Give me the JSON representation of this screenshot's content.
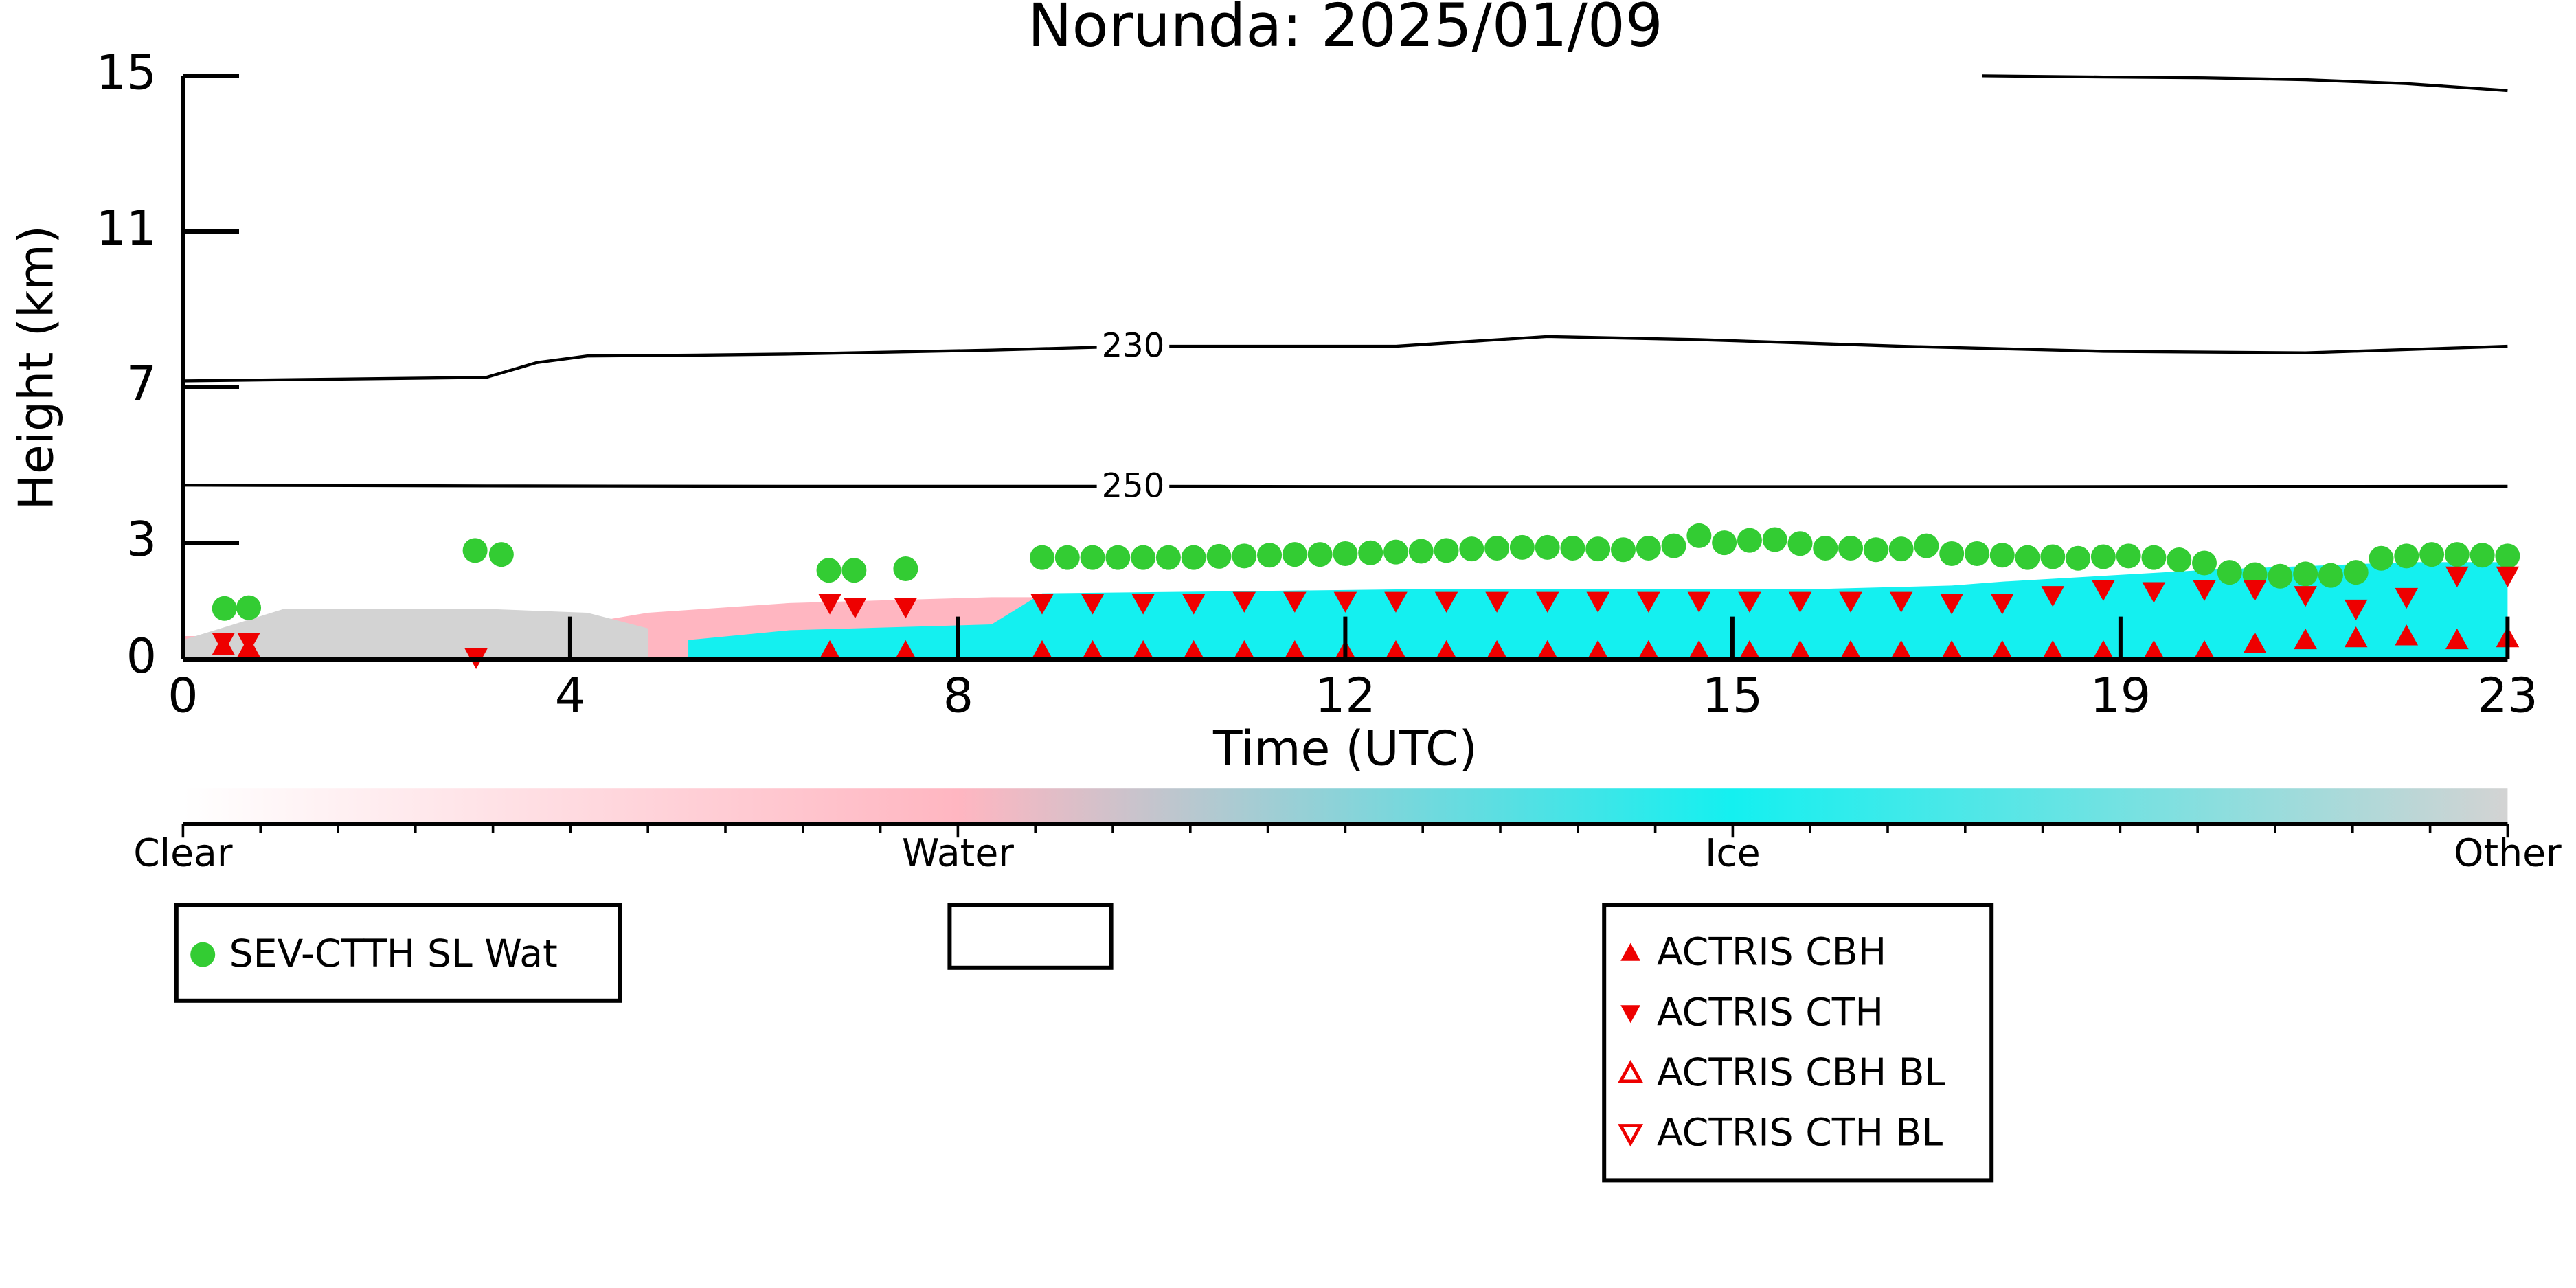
{
  "chart_data": {
    "type": "scatter",
    "title": "Norunda: 2025/01/09",
    "x_label": "Time (UTC)",
    "y_label": "Height (km)",
    "xlim": [
      0,
      23
    ],
    "ylim": [
      0,
      15
    ],
    "xticks": [
      0,
      {
        "value": 3.83,
        "label": "4"
      },
      {
        "value": 7.67,
        "label": "8"
      },
      {
        "value": 11.5,
        "label": "12"
      },
      {
        "value": 15.33,
        "label": "15"
      },
      {
        "value": 19.17,
        "label": "19"
      },
      23
    ],
    "yticks": [
      0,
      3,
      7,
      11,
      15
    ],
    "cloud_phase": [
      {
        "color": "#ffb6c1",
        "x": [
          0,
          0.9,
          1,
          3.9,
          4.6,
          6,
          8,
          8.5
        ],
        "top": [
          0.6,
          0.6,
          0.2,
          0.9,
          1.2,
          1.45,
          1.6,
          1.6
        ]
      },
      {
        "color": "#d3d3d3",
        "x": [
          0,
          1,
          2,
          3,
          4,
          4.6
        ],
        "top": [
          0.5,
          1.3,
          1.3,
          1.3,
          1.2,
          0.8
        ]
      },
      {
        "color": "#14f0f0",
        "x": [
          5,
          6,
          8,
          8.5,
          12,
          16,
          17.5,
          18,
          20,
          22,
          23
        ],
        "top": [
          0.5,
          0.75,
          0.9,
          1.7,
          1.8,
          1.8,
          1.9,
          2.0,
          2.3,
          2.5,
          2.5
        ]
      }
    ],
    "contours": [
      {
        "label": "230",
        "x": [
          0,
          3,
          3.5,
          4,
          5,
          6,
          8,
          9.4,
          12,
          13.5,
          15,
          17,
          19,
          21,
          23
        ],
        "values": [
          7.16,
          7.25,
          7.63,
          7.8,
          7.82,
          7.85,
          7.95,
          8.05,
          8.05,
          8.3,
          8.22,
          8.05,
          7.92,
          7.88,
          8.05
        ]
      },
      {
        "label": "250",
        "x": [
          0,
          3,
          6,
          9.4,
          13,
          18,
          23
        ],
        "values": [
          4.48,
          4.46,
          4.45,
          4.45,
          4.44,
          4.44,
          4.45
        ]
      }
    ],
    "top_line": {
      "x": [
        17.8,
        19,
        20,
        21,
        22,
        23
      ],
      "values": [
        15.0,
        14.97,
        14.95,
        14.9,
        14.8,
        14.62
      ]
    },
    "series": [
      {
        "name": "SEV-CTTH SL Wat",
        "color": "#33cc33",
        "marker": "o",
        "x": [
          0.41,
          0.65,
          2.89,
          3.15,
          6.39,
          6.64,
          7.15,
          8.5,
          8.75,
          9,
          9.25,
          9.5,
          9.75,
          10,
          10.25,
          10.5,
          10.75,
          11,
          11.25,
          11.5,
          11.75,
          12,
          12.25,
          12.5,
          12.75,
          13,
          13.25,
          13.5,
          13.75,
          14,
          14.25,
          14.5,
          14.75,
          15,
          15.25,
          15.5,
          15.75,
          16,
          16.25,
          16.5,
          16.75,
          17,
          17.25,
          17.5,
          17.75,
          18,
          18.25,
          18.5,
          18.75,
          19,
          19.25,
          19.5,
          19.75,
          20,
          20.25,
          20.5,
          20.75,
          21,
          21.25,
          21.5,
          21.75,
          22,
          22.25,
          22.5,
          22.75,
          23
        ],
        "values": [
          1.31,
          1.33,
          2.8,
          2.7,
          2.29,
          2.29,
          2.33,
          2.62,
          2.62,
          2.62,
          2.62,
          2.62,
          2.62,
          2.62,
          2.65,
          2.66,
          2.68,
          2.7,
          2.7,
          2.72,
          2.74,
          2.76,
          2.78,
          2.8,
          2.84,
          2.86,
          2.88,
          2.88,
          2.86,
          2.84,
          2.82,
          2.86,
          2.92,
          3.18,
          3.0,
          3.06,
          3.08,
          2.98,
          2.86,
          2.86,
          2.82,
          2.84,
          2.92,
          2.72,
          2.72,
          2.68,
          2.62,
          2.64,
          2.6,
          2.64,
          2.66,
          2.62,
          2.56,
          2.48,
          2.24,
          2.18,
          2.14,
          2.2,
          2.16,
          2.24,
          2.6,
          2.66,
          2.7,
          2.7,
          2.68,
          2.66
        ]
      },
      {
        "name": "ACTRIS CBH",
        "color": "#ee0000",
        "marker": "^",
        "x": [
          0.4,
          0.65,
          6.4,
          7.15,
          8.5,
          9,
          9.5,
          10,
          10.5,
          11,
          11.5,
          12,
          12.5,
          13,
          13.5,
          14,
          14.5,
          15,
          15.5,
          16,
          16.5,
          17,
          17.5,
          18,
          18.5,
          19,
          19.5,
          20,
          20.5,
          21,
          21.5,
          22,
          22.5,
          23
        ],
        "values": [
          0.35,
          0.3,
          0.2,
          0.2,
          0.2,
          0.2,
          0.2,
          0.2,
          0.2,
          0.2,
          0.2,
          0.2,
          0.2,
          0.2,
          0.2,
          0.2,
          0.2,
          0.2,
          0.2,
          0.2,
          0.2,
          0.2,
          0.2,
          0.2,
          0.2,
          0.2,
          0.2,
          0.2,
          0.4,
          0.5,
          0.55,
          0.6,
          0.5,
          0.55
        ]
      },
      {
        "name": "ACTRIS CTH",
        "color": "#ee0000",
        "marker": "v",
        "x": [
          0.4,
          0.65,
          2.9,
          6.4,
          6.65,
          7.15,
          8.5,
          9,
          9.5,
          10,
          10.5,
          11,
          11.5,
          12,
          12.5,
          13,
          13.5,
          14,
          14.5,
          15,
          15.5,
          16,
          16.5,
          17,
          17.5,
          18,
          18.5,
          19,
          19.5,
          20,
          20.5,
          21,
          21.5,
          22,
          22.5,
          23
        ],
        "values": [
          0.45,
          0.45,
          0.05,
          1.45,
          1.35,
          1.35,
          1.45,
          1.45,
          1.45,
          1.45,
          1.5,
          1.5,
          1.5,
          1.5,
          1.5,
          1.5,
          1.5,
          1.5,
          1.5,
          1.5,
          1.5,
          1.5,
          1.5,
          1.5,
          1.45,
          1.45,
          1.65,
          1.8,
          1.75,
          1.8,
          1.8,
          1.65,
          1.3,
          1.6,
          2.15,
          2.15
        ]
      },
      {
        "name": "ACTRIS CBH BL",
        "color": "#ee0000",
        "marker": "^-open",
        "x": [],
        "values": []
      },
      {
        "name": "ACTRIS CTH BL",
        "color": "#ee0000",
        "marker": "v-open",
        "x": [],
        "values": []
      }
    ],
    "colorbar": {
      "labels": [
        "Clear",
        "Water",
        "Ice",
        "Other"
      ],
      "colors": [
        "#ffffff",
        "#ffb6c1",
        "#14f0f0",
        "#d3d3d3"
      ]
    }
  }
}
